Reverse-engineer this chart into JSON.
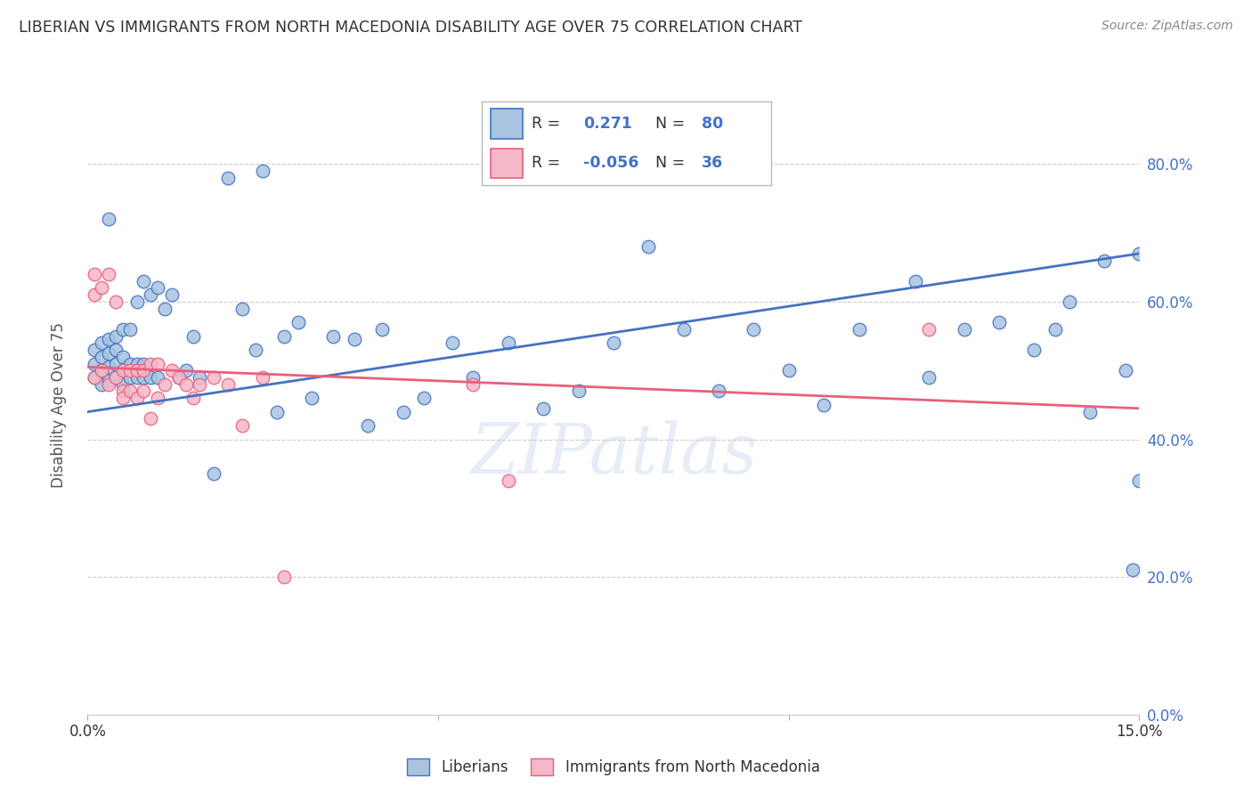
{
  "title": "LIBERIAN VS IMMIGRANTS FROM NORTH MACEDONIA DISABILITY AGE OVER 75 CORRELATION CHART",
  "source": "Source: ZipAtlas.com",
  "ylabel": "Disability Age Over 75",
  "watermark": "ZIPatlas",
  "xlim": [
    0.0,
    0.15
  ],
  "ylim": [
    0.0,
    0.9
  ],
  "xticks": [
    0.0,
    0.05,
    0.1,
    0.15
  ],
  "yticks": [
    0.0,
    0.2,
    0.4,
    0.6,
    0.8
  ],
  "blue_color": "#a8c4e0",
  "pink_color": "#f4b8c8",
  "blue_edge_color": "#4472c4",
  "pink_edge_color": "#e8607a",
  "blue_line_color": "#4472c4",
  "pink_line_color": "#e8607a",
  "bg_color": "#ffffff",
  "grid_color": "#cccccc",
  "right_axis_color": "#4472c4",
  "blue_line": [
    0.0,
    0.44,
    0.15,
    0.67
  ],
  "pink_line": [
    0.0,
    0.505,
    0.15,
    0.445
  ],
  "blue_scatter_x": [
    0.001,
    0.001,
    0.001,
    0.002,
    0.002,
    0.002,
    0.002,
    0.003,
    0.003,
    0.003,
    0.003,
    0.003,
    0.004,
    0.004,
    0.004,
    0.004,
    0.005,
    0.005,
    0.005,
    0.005,
    0.006,
    0.006,
    0.006,
    0.007,
    0.007,
    0.007,
    0.008,
    0.008,
    0.008,
    0.009,
    0.009,
    0.01,
    0.01,
    0.011,
    0.012,
    0.013,
    0.014,
    0.015,
    0.016,
    0.018,
    0.02,
    0.022,
    0.024,
    0.025,
    0.027,
    0.028,
    0.03,
    0.032,
    0.035,
    0.038,
    0.04,
    0.042,
    0.045,
    0.048,
    0.052,
    0.055,
    0.06,
    0.065,
    0.07,
    0.075,
    0.08,
    0.085,
    0.09,
    0.095,
    0.1,
    0.105,
    0.11,
    0.118,
    0.12,
    0.125,
    0.13,
    0.135,
    0.138,
    0.14,
    0.143,
    0.145,
    0.148,
    0.149,
    0.15,
    0.15
  ],
  "blue_scatter_y": [
    0.49,
    0.51,
    0.53,
    0.48,
    0.5,
    0.52,
    0.54,
    0.485,
    0.505,
    0.525,
    0.545,
    0.72,
    0.49,
    0.51,
    0.53,
    0.55,
    0.48,
    0.5,
    0.52,
    0.56,
    0.49,
    0.51,
    0.56,
    0.49,
    0.51,
    0.6,
    0.49,
    0.51,
    0.63,
    0.49,
    0.61,
    0.49,
    0.62,
    0.59,
    0.61,
    0.49,
    0.5,
    0.55,
    0.49,
    0.35,
    0.78,
    0.59,
    0.53,
    0.79,
    0.44,
    0.55,
    0.57,
    0.46,
    0.55,
    0.545,
    0.42,
    0.56,
    0.44,
    0.46,
    0.54,
    0.49,
    0.54,
    0.445,
    0.47,
    0.54,
    0.68,
    0.56,
    0.47,
    0.56,
    0.5,
    0.45,
    0.56,
    0.63,
    0.49,
    0.56,
    0.57,
    0.53,
    0.56,
    0.6,
    0.44,
    0.66,
    0.5,
    0.21,
    0.34,
    0.67
  ],
  "pink_scatter_x": [
    0.001,
    0.001,
    0.001,
    0.002,
    0.002,
    0.003,
    0.003,
    0.004,
    0.004,
    0.005,
    0.005,
    0.005,
    0.006,
    0.006,
    0.007,
    0.007,
    0.008,
    0.008,
    0.009,
    0.009,
    0.01,
    0.01,
    0.011,
    0.012,
    0.013,
    0.014,
    0.015,
    0.016,
    0.018,
    0.02,
    0.022,
    0.025,
    0.028,
    0.055,
    0.06,
    0.12
  ],
  "pink_scatter_y": [
    0.64,
    0.61,
    0.49,
    0.62,
    0.5,
    0.64,
    0.48,
    0.6,
    0.49,
    0.5,
    0.47,
    0.46,
    0.5,
    0.47,
    0.5,
    0.46,
    0.47,
    0.5,
    0.43,
    0.51,
    0.51,
    0.46,
    0.48,
    0.5,
    0.49,
    0.48,
    0.46,
    0.48,
    0.49,
    0.48,
    0.42,
    0.49,
    0.2,
    0.48,
    0.34,
    0.56
  ]
}
